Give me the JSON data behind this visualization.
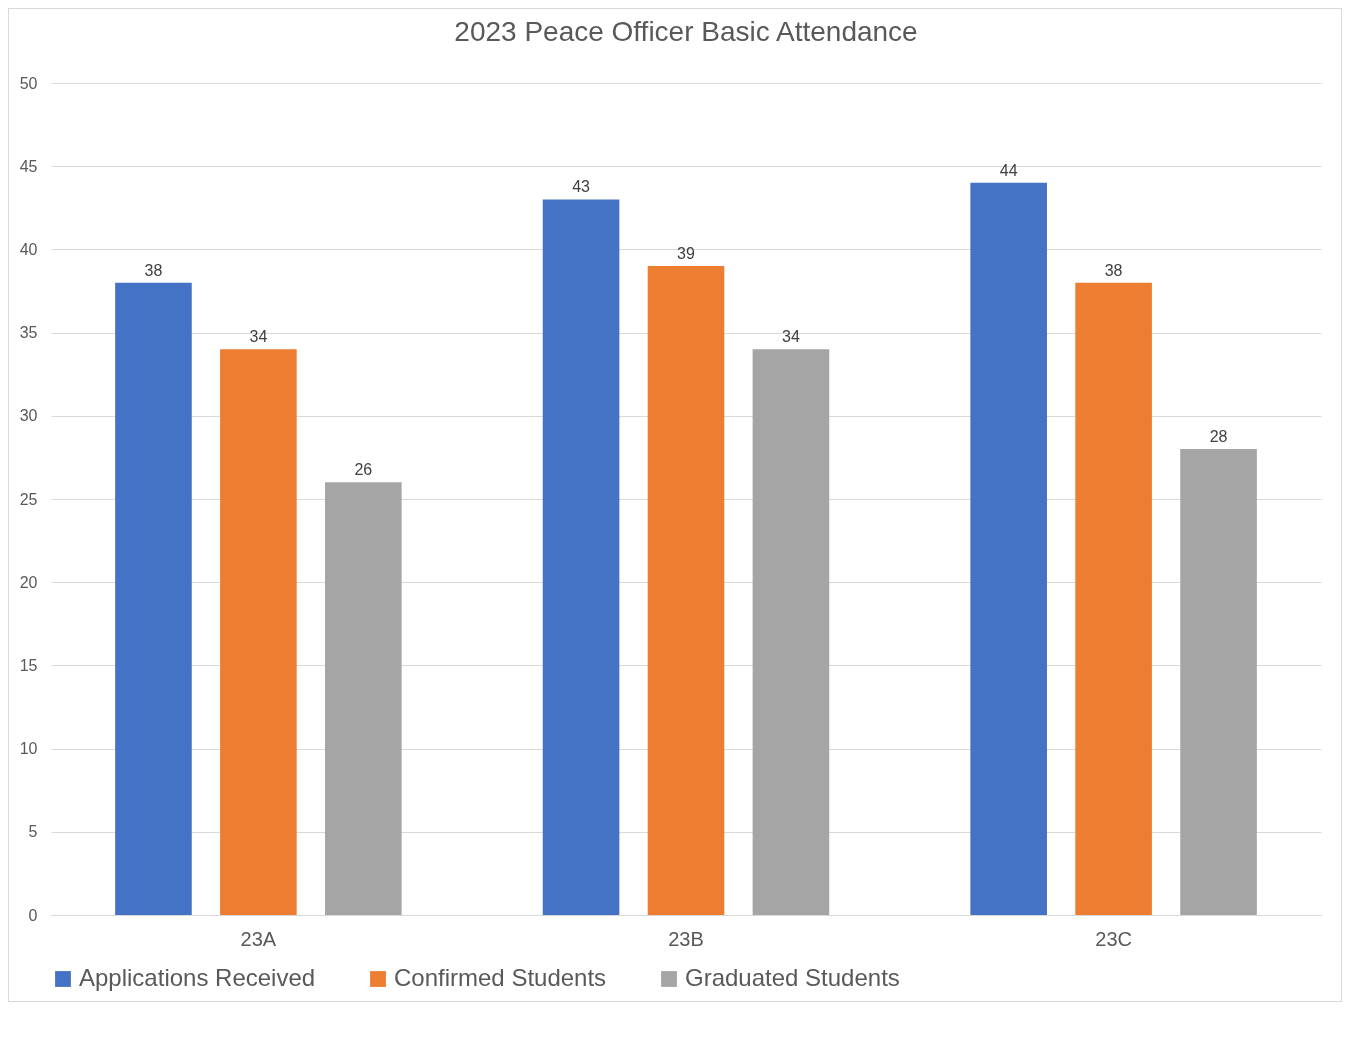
{
  "chart_data": {
    "type": "bar",
    "title": "2023 Peace Officer Basic Attendance",
    "categories": [
      "23A",
      "23B",
      "23C"
    ],
    "series": [
      {
        "name": "Applications Received",
        "color": "#4472c4",
        "values": [
          38,
          43,
          44
        ]
      },
      {
        "name": "Confirmed Students",
        "color": "#ed7d31",
        "values": [
          34,
          39,
          38
        ]
      },
      {
        "name": "Graduated Students",
        "color": "#a5a5a5",
        "values": [
          26,
          34,
          28
        ]
      }
    ],
    "ylim": [
      0,
      50
    ],
    "yticks": [
      0,
      5,
      10,
      15,
      20,
      25,
      30,
      35,
      40,
      45,
      50
    ],
    "grid": "y",
    "legend": "bottom",
    "data_labels": true
  }
}
